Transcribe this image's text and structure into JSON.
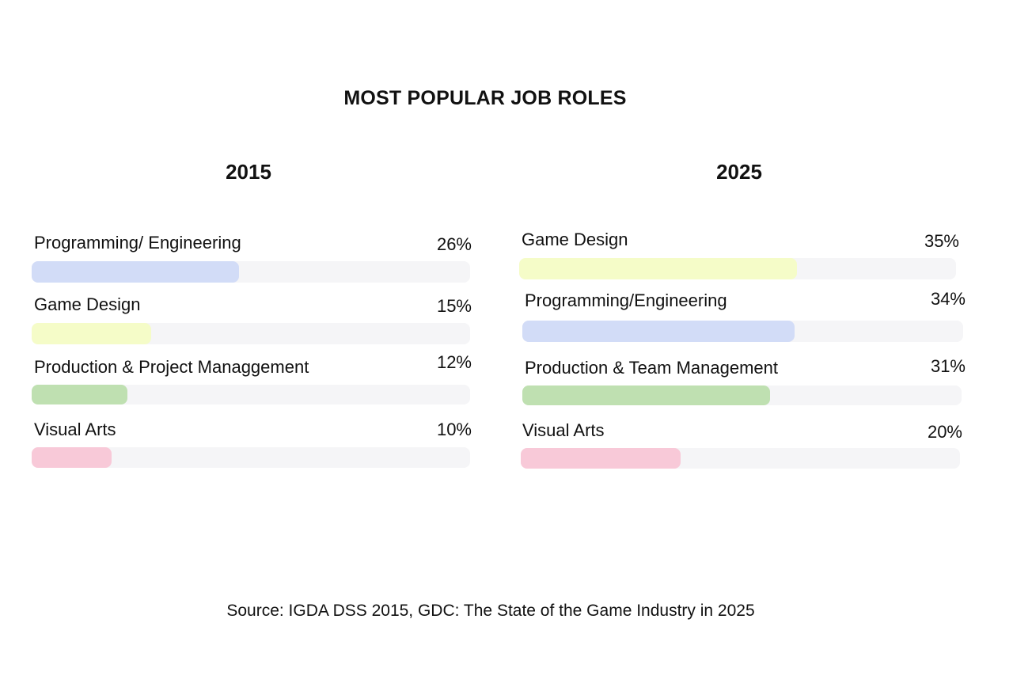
{
  "chart_data": {
    "type": "bar",
    "orientation": "horizontal",
    "title": "MOST POPULAR JOB ROLES",
    "source": "Source: IGDA DSS 2015, GDC: The State of the Game Industry in 2025",
    "panels": [
      {
        "year": "2015",
        "bars": [
          {
            "label": "Programming/ Engineering",
            "value": 26,
            "value_label": "26%",
            "color": "#d2dcf7"
          },
          {
            "label": "Game Design",
            "value": 15,
            "value_label": "15%",
            "color": "#f5fcc8"
          },
          {
            "label": "Production & Project Managgement",
            "value": 12,
            "value_label": "12%",
            "color": "#bfe0b1"
          },
          {
            "label": "Visual Arts",
            "value": 10,
            "value_label": "10%",
            "color": "#f8c9d8"
          }
        ]
      },
      {
        "year": "2025",
        "bars": [
          {
            "label": "Game Design",
            "value": 35,
            "value_label": "35%",
            "color": "#f5fcc8"
          },
          {
            "label": "Programming/Engineering",
            "value": 34,
            "value_label": "34%",
            "color": "#d2dcf7"
          },
          {
            "label": "Production & Team Management",
            "value": 31,
            "value_label": "31%",
            "color": "#bfe0b1"
          },
          {
            "label": "Visual Arts",
            "value": 20,
            "value_label": "20%",
            "color": "#f8c9d8"
          }
        ]
      }
    ]
  }
}
